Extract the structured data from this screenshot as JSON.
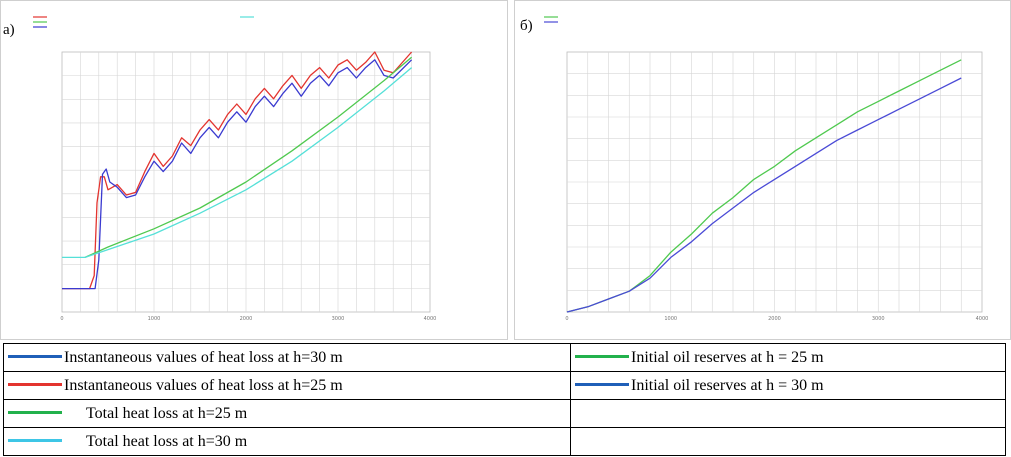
{
  "colors": {
    "blue": "#1f5fb8",
    "red": "#e3342f",
    "green": "#22b14c",
    "cyan": "#3ec6e6",
    "plot_green": "#4fc94f",
    "plot_cyan": "#55e0d8",
    "plot_blue": "#4a4ad6",
    "grid": "#d6d6d6"
  },
  "panels": [
    {
      "letter": "а)"
    },
    {
      "letter": "б)"
    }
  ],
  "legend_table": {
    "left": [
      {
        "label": "Instantaneous values of heat loss at h=30 m",
        "color": "#1f5fb8",
        "indent": false
      },
      {
        "label": "Instantaneous values of heat loss at h=25 m",
        "color": "#e3342f",
        "indent": false
      },
      {
        "label": "Total heat loss at h=25 m",
        "color": "#22b14c",
        "indent": true
      },
      {
        "label": "Total heat loss at h=30 m",
        "color": "#3ec6e6",
        "indent": true
      }
    ],
    "right": [
      {
        "label": "Initial oil reserves at h = 25 m",
        "color": "#22b14c"
      },
      {
        "label": "Initial oil reserves at h = 30 m",
        "color": "#1f5fb8"
      }
    ]
  },
  "chart_data": [
    {
      "type": "line",
      "x_ticks": [
        "0",
        "1000",
        "2000",
        "3000",
        "4000"
      ],
      "xlim": [
        0,
        4000
      ],
      "series": [
        {
          "color": "#e3342f",
          "x": [
            0,
            300,
            350,
            380,
            420,
            460,
            500,
            600,
            700,
            800,
            900,
            1000,
            1100,
            1200,
            1300,
            1400,
            1500,
            1600,
            1700,
            1800,
            1900,
            2000,
            2100,
            2200,
            2300,
            2400,
            2500,
            2600,
            2700,
            2800,
            2900,
            3000,
            3100,
            3200,
            3300,
            3400,
            3500,
            3600,
            3800
          ],
          "y": [
            0.09,
            0.09,
            0.14,
            0.42,
            0.52,
            0.52,
            0.47,
            0.49,
            0.45,
            0.46,
            0.54,
            0.61,
            0.56,
            0.6,
            0.67,
            0.64,
            0.7,
            0.74,
            0.7,
            0.76,
            0.8,
            0.76,
            0.82,
            0.86,
            0.82,
            0.87,
            0.91,
            0.86,
            0.91,
            0.94,
            0.9,
            0.95,
            0.97,
            0.93,
            0.96,
            1.0,
            0.93,
            0.92,
            1.0
          ]
        },
        {
          "color": "#3a3ad0",
          "x": [
            0,
            360,
            400,
            440,
            480,
            520,
            600,
            700,
            800,
            900,
            1000,
            1100,
            1200,
            1300,
            1400,
            1500,
            1600,
            1700,
            1800,
            1900,
            2000,
            2100,
            2200,
            2300,
            2400,
            2500,
            2600,
            2700,
            2800,
            2900,
            3000,
            3100,
            3200,
            3300,
            3400,
            3500,
            3600,
            3800
          ],
          "y": [
            0.09,
            0.09,
            0.2,
            0.53,
            0.55,
            0.5,
            0.48,
            0.44,
            0.45,
            0.52,
            0.58,
            0.54,
            0.58,
            0.65,
            0.61,
            0.67,
            0.71,
            0.67,
            0.73,
            0.77,
            0.73,
            0.79,
            0.83,
            0.79,
            0.84,
            0.88,
            0.83,
            0.88,
            0.91,
            0.87,
            0.92,
            0.94,
            0.9,
            0.94,
            0.97,
            0.91,
            0.9,
            0.97
          ]
        },
        {
          "color": "#4fc94f",
          "x": [
            250,
            500,
            1000,
            1500,
            2000,
            2500,
            3000,
            3500,
            3800
          ],
          "y": [
            0.21,
            0.25,
            0.32,
            0.4,
            0.5,
            0.62,
            0.75,
            0.89,
            0.98
          ]
        },
        {
          "color": "#55e0d8",
          "x": [
            0,
            250,
            500,
            1000,
            1500,
            2000,
            2500,
            3000,
            3500,
            3800
          ],
          "y": [
            0.21,
            0.21,
            0.24,
            0.3,
            0.38,
            0.47,
            0.58,
            0.71,
            0.85,
            0.94
          ]
        }
      ]
    },
    {
      "type": "line",
      "x_ticks": [
        "0",
        "1000",
        "2000",
        "3000",
        "4000"
      ],
      "xlim": [
        0,
        4000
      ],
      "series": [
        {
          "color": "#4fc94f",
          "x": [
            0,
            200,
            400,
            600,
            800,
            1000,
            1200,
            1400,
            1600,
            1800,
            2000,
            2200,
            2400,
            2600,
            2800,
            3000,
            3200,
            3400,
            3600,
            3800
          ],
          "y": [
            0.0,
            0.02,
            0.05,
            0.08,
            0.14,
            0.23,
            0.3,
            0.38,
            0.44,
            0.51,
            0.56,
            0.62,
            0.67,
            0.72,
            0.77,
            0.81,
            0.85,
            0.89,
            0.93,
            0.97
          ]
        },
        {
          "color": "#4a4ad6",
          "x": [
            0,
            200,
            400,
            600,
            800,
            1000,
            1200,
            1400,
            1600,
            1800,
            2000,
            2200,
            2400,
            2600,
            2800,
            3000,
            3200,
            3400,
            3600,
            3800
          ],
          "y": [
            0.0,
            0.02,
            0.05,
            0.08,
            0.13,
            0.21,
            0.27,
            0.34,
            0.4,
            0.46,
            0.51,
            0.56,
            0.61,
            0.66,
            0.7,
            0.74,
            0.78,
            0.82,
            0.86,
            0.9
          ]
        }
      ]
    }
  ]
}
